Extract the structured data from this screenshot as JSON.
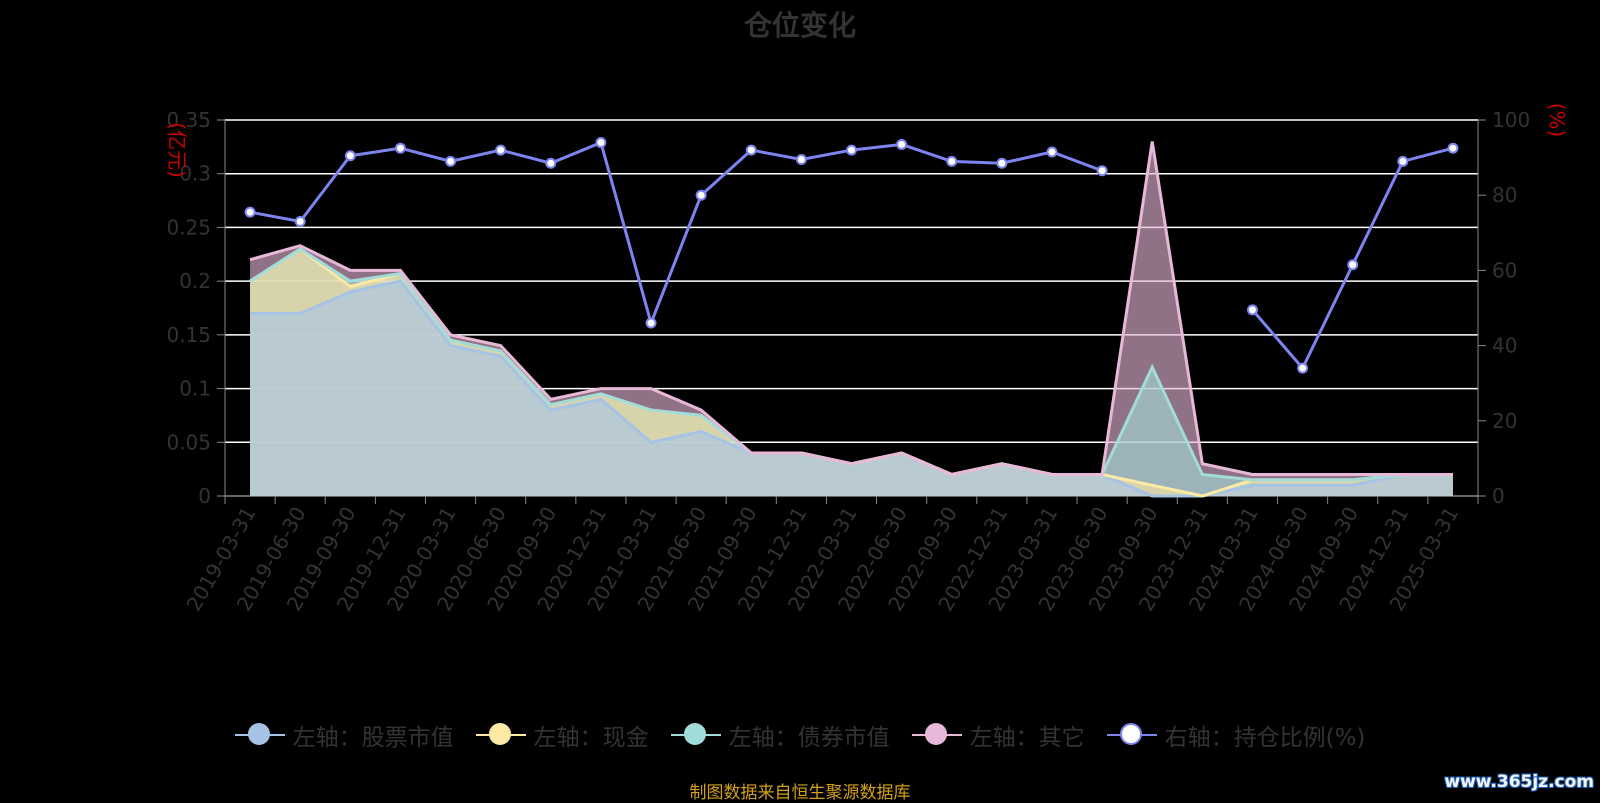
{
  "title": "仓位变化",
  "source": "制图数据来自恒生聚源数据库",
  "watermark": "www.365jz.com",
  "chart_data": {
    "type": "area",
    "categories": [
      "2019-03-31",
      "2019-06-30",
      "2019-09-30",
      "2019-12-31",
      "2020-03-31",
      "2020-06-30",
      "2020-09-30",
      "2020-12-31",
      "2021-03-31",
      "2021-06-30",
      "2021-09-30",
      "2021-12-31",
      "2022-03-31",
      "2022-06-30",
      "2022-09-30",
      "2022-12-31",
      "2023-03-31",
      "2023-06-30",
      "2023-09-30",
      "2023-12-31",
      "2024-03-31",
      "2024-06-30",
      "2024-09-30",
      "2024-12-31",
      "2025-03-31"
    ],
    "y_left": {
      "label": "(亿元)",
      "min": 0,
      "max": 0.35,
      "ticks": [
        0,
        0.05,
        0.1,
        0.15,
        0.2,
        0.25,
        0.3,
        0.35
      ],
      "tick_labels": [
        "0",
        "0.05",
        "0.1",
        "0.15",
        "0.2",
        "0.25",
        "0.3",
        "0.35"
      ]
    },
    "y_right": {
      "label": "(%)",
      "min": 0,
      "max": 100,
      "ticks": [
        0,
        20,
        40,
        60,
        80,
        100
      ],
      "tick_labels": [
        "0",
        "20",
        "40",
        "60",
        "80",
        "100"
      ]
    },
    "grid": true,
    "legend_position": "bottom",
    "stacked_series": [
      {
        "name": "左轴：股票市值",
        "color": "#a6c3e6",
        "values": [
          0.17,
          0.17,
          0.19,
          0.2,
          0.14,
          0.13,
          0.08,
          0.09,
          0.05,
          0.06,
          0.04,
          0.04,
          0.03,
          0.04,
          0.02,
          0.03,
          0.02,
          0.02,
          null,
          null,
          0.01,
          0.01,
          0.01,
          0.02,
          0.02
        ]
      },
      {
        "name": "左轴：现金",
        "color": "#fbe9a4",
        "values": [
          0.03,
          0.06,
          0.005,
          0.007,
          0.005,
          0.005,
          0.005,
          0.005,
          0.03,
          0.015,
          0,
          0,
          0,
          0,
          0,
          0,
          0,
          0,
          0.01,
          0.0,
          0.005,
          0.005,
          0.005,
          0,
          0
        ]
      },
      {
        "name": "左轴：债券市值",
        "color": "#a2dcd8",
        "values": [
          0,
          0,
          0.005,
          0,
          0,
          0,
          0,
          0,
          0,
          0,
          0,
          0,
          0,
          0,
          0,
          0,
          0,
          0,
          0.11,
          0.02,
          0,
          0,
          0,
          0,
          0
        ]
      },
      {
        "name": "左轴：其它",
        "color": "#e8b8d8",
        "values": [
          0.02,
          0.003,
          0.01,
          0.003,
          0.005,
          0.005,
          0.005,
          0.005,
          0.02,
          0.005,
          0,
          0,
          0,
          0,
          0,
          0,
          0,
          0,
          0.21,
          0.01,
          0.005,
          0.005,
          0.005,
          0,
          0
        ]
      }
    ],
    "line_series": {
      "name": "右轴：持仓比例(%)",
      "color": "#7c84f0",
      "values": [
        75.5,
        73,
        90.5,
        92.5,
        89,
        92,
        88.5,
        94,
        46,
        80,
        92,
        89.5,
        92,
        93.5,
        89,
        88.5,
        91.5,
        86.5,
        null,
        null,
        49.5,
        34,
        61.5,
        89,
        92.5
      ]
    }
  }
}
